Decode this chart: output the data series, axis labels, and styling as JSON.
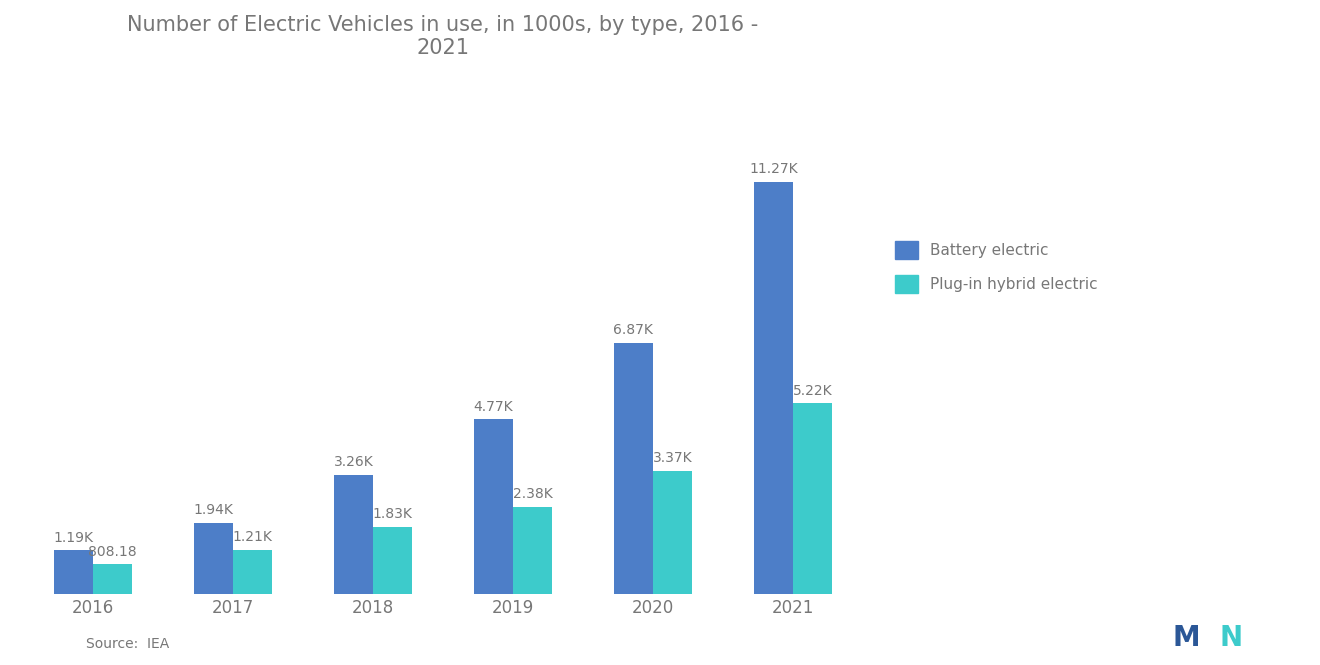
{
  "title": "Number of Electric Vehicles in use, in 1000s, by type, 2016 -\n2021",
  "years": [
    "2016",
    "2017",
    "2018",
    "2019",
    "2020",
    "2021"
  ],
  "battery_electric": [
    1.19,
    1.94,
    3.26,
    4.77,
    6.87,
    11.27
  ],
  "plugin_hybrid": [
    0.80818,
    1.21,
    1.83,
    2.38,
    3.37,
    5.22
  ],
  "battery_labels": [
    "1.19K",
    "1.94K",
    "3.26K",
    "4.77K",
    "6.87K",
    "11.27K"
  ],
  "hybrid_labels": [
    "808.18",
    "1.21K",
    "1.83K",
    "2.38K",
    "3.37K",
    "5.22K"
  ],
  "battery_color": "#4d7ec8",
  "hybrid_color": "#3dcbcb",
  "background_color": "#FFFFFF",
  "bar_width": 0.28,
  "legend_battery": "Battery electric",
  "legend_hybrid": "Plug-in hybrid electric",
  "source_text": "Source:  IEA",
  "title_fontsize": 15,
  "label_fontsize": 10,
  "axis_fontsize": 12,
  "ylim": [
    0,
    14
  ],
  "text_color": "#777777"
}
